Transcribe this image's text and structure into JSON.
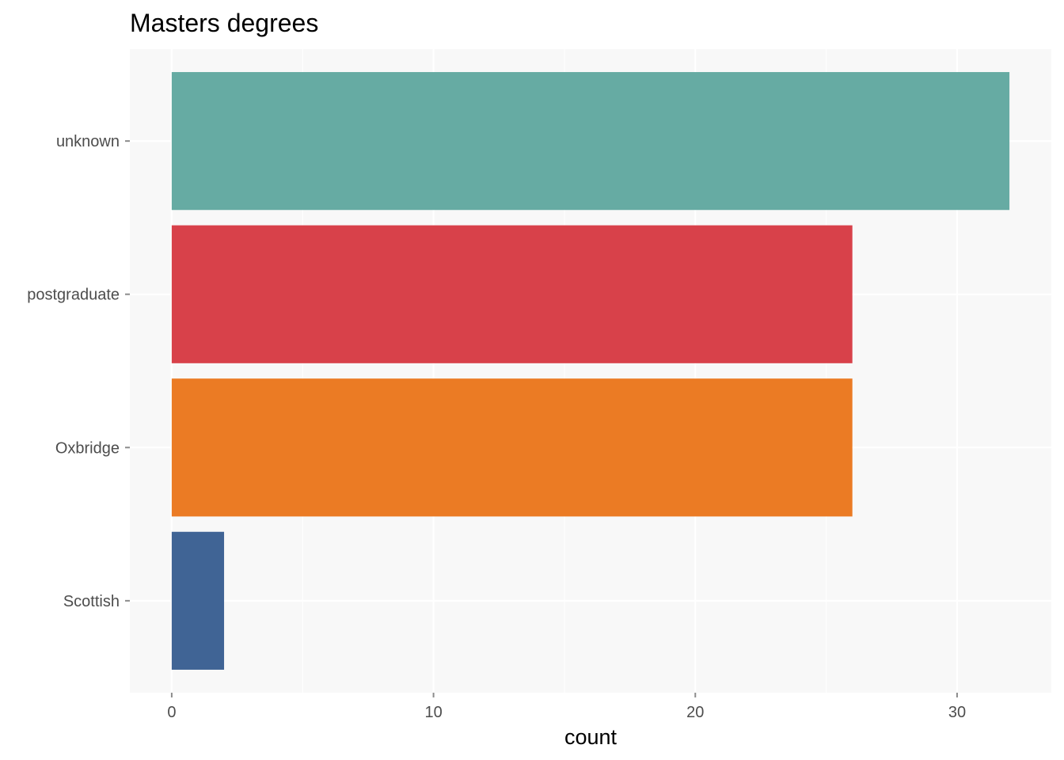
{
  "chart_data": {
    "type": "bar",
    "orientation": "horizontal",
    "title": "Masters degrees",
    "xlabel": "count",
    "ylabel": "",
    "categories": [
      "unknown",
      "postgraduate",
      "Oxbridge",
      "Scottish"
    ],
    "values": [
      32,
      26,
      26,
      2
    ],
    "colors": [
      "#66ABA3",
      "#D8414A",
      "#EB7B24",
      "#406495"
    ],
    "xlim": [
      -1.6,
      33.6
    ],
    "xticks": [
      0,
      10,
      20,
      30
    ],
    "grid": true,
    "panel_background": "#F8F8F8",
    "grid_color": "#FFFFFF",
    "legend": "none"
  }
}
